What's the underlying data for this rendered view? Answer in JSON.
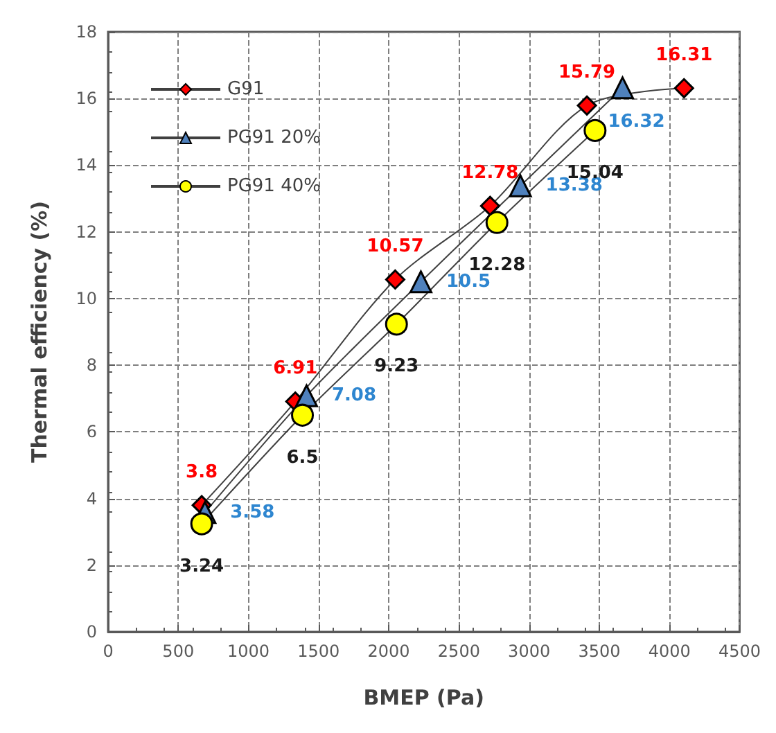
{
  "chart_data": {
    "type": "line",
    "xlabel": "BMEP (Pa)",
    "ylabel": "Thermal efficiency (%)",
    "xlim": [
      0,
      4500
    ],
    "xticks": [
      0,
      500,
      1000,
      1500,
      2000,
      2500,
      3000,
      3500,
      4000,
      4500
    ],
    "ylim": [
      0,
      18
    ],
    "yticks": [
      0,
      2,
      4,
      6,
      8,
      10,
      12,
      14,
      16,
      18
    ],
    "grid": true,
    "legend": "top left",
    "data_labels": true,
    "series": [
      {
        "name": "G91",
        "color": "#ff0000",
        "marker": "diamond",
        "x": [
          667,
          1334,
          2046,
          2722,
          3412,
          4104
        ],
        "values": [
          3.8,
          6.91,
          10.57,
          12.78,
          15.79,
          16.31
        ]
      },
      {
        "name": "PG91 20%",
        "color": "#4f81bd",
        "marker": "triangle",
        "x": [
          690,
          1414,
          2229,
          2938,
          3666
        ],
        "values": [
          3.58,
          7.08,
          10.5,
          13.38,
          16.32
        ]
      },
      {
        "name": "PG91 40%",
        "color": "#ffff00",
        "marker": "circle",
        "x": [
          667,
          1385,
          2055,
          2771,
          3470
        ],
        "values": [
          3.24,
          6.5,
          9.23,
          12.28,
          15.04
        ]
      }
    ]
  }
}
